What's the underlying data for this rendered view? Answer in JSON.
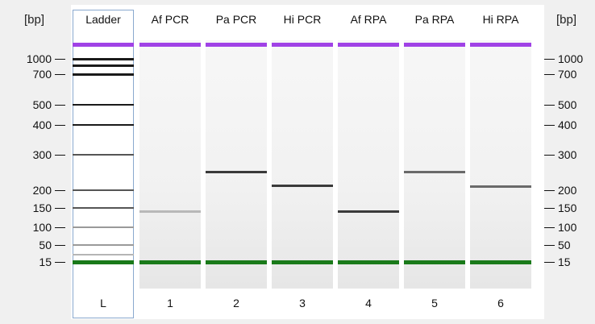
{
  "axis": {
    "unit_left": "[bp]",
    "unit_right": "[bp]",
    "ticks": [
      {
        "label": "1000",
        "bp": 1000
      },
      {
        "label": "700",
        "bp": 700
      },
      {
        "label": "500",
        "bp": 500
      },
      {
        "label": "400",
        "bp": 400
      },
      {
        "label": "300",
        "bp": 300
      },
      {
        "label": "200",
        "bp": 200
      },
      {
        "label": "150",
        "bp": 150
      },
      {
        "label": "100",
        "bp": 100
      },
      {
        "label": "50",
        "bp": 50
      },
      {
        "label": "15",
        "bp": 15
      }
    ]
  },
  "colors": {
    "upper_marker": "#a042e6",
    "lower_marker": "#1a7a1a",
    "lane_border": "#8aa9cf"
  },
  "lanes": [
    {
      "title": "Ladder",
      "number": "L"
    },
    {
      "title": "Af PCR",
      "number": "1"
    },
    {
      "title": "Pa PCR",
      "number": "2"
    },
    {
      "title": "Hi PCR",
      "number": "3"
    },
    {
      "title": "Af RPA",
      "number": "4"
    },
    {
      "title": "Pa RPA",
      "number": "5"
    },
    {
      "title": "Hi RPA",
      "number": "6"
    }
  ],
  "ladder_bands_bp": [
    1500,
    1000,
    850,
    700,
    500,
    400,
    300,
    200,
    150,
    100,
    50,
    25,
    15
  ],
  "sample_bands_bp": [
    {
      "lane": "1",
      "bp": 140,
      "intensity": "faint"
    },
    {
      "lane": "2",
      "bp": 245,
      "intensity": "strong"
    },
    {
      "lane": "3",
      "bp": 210,
      "intensity": "strong"
    },
    {
      "lane": "4",
      "bp": 138,
      "intensity": "strong"
    },
    {
      "lane": "5",
      "bp": 247,
      "intensity": "medium"
    },
    {
      "lane": "6",
      "bp": 209,
      "intensity": "medium"
    }
  ]
}
